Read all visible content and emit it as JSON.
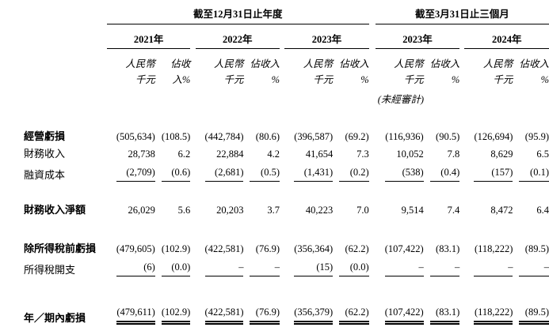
{
  "document": {
    "table": {
      "header": {
        "group1_title": "截至12月31日止年度",
        "group2_title": "截至3月31日止三個月",
        "years": [
          "2021年",
          "2022年",
          "2023年",
          "2023年",
          "2024年"
        ],
        "subheaders": [
          {
            "amount1": "人民幣",
            "amount2": "千元",
            "pct1": "佔收",
            "pct2": "入%"
          },
          {
            "amount1": "人民幣",
            "amount2": "千元",
            "pct1": "佔收入",
            "pct2": "%"
          },
          {
            "amount1": "人民幣",
            "amount2": "千元",
            "pct1": "佔收入",
            "pct2": "%"
          },
          {
            "amount1": "人民幣",
            "amount2": "千元",
            "pct1": "佔收入",
            "pct2": "%"
          },
          {
            "amount1": "人民幣",
            "amount2": "千元",
            "pct1": "佔收入",
            "pct2": "%"
          }
        ],
        "unaudited_note": "(未經審計)"
      },
      "rows": [
        {
          "label": "經營虧損",
          "values": [
            "(505,634)",
            "(108.5)",
            "(442,784)",
            "(80.6)",
            "(396,587)",
            "(69.2)",
            "(116,936)",
            "(90.5)",
            "(126,694)",
            "(95.9)"
          ]
        },
        {
          "label": "財務收入",
          "values": [
            "28,738",
            "6.2",
            "22,884",
            "4.2",
            "41,654",
            "7.3",
            "10,052",
            "7.8",
            "8,629",
            "6.5"
          ]
        },
        {
          "label": "融資成本",
          "values": [
            "(2,709)",
            "(0.6)",
            "(2,681)",
            "(0.5)",
            "(1,431)",
            "(0.2)",
            "(538)",
            "(0.4)",
            "(157)",
            "(0.1)"
          ]
        },
        {
          "label": "財務收入淨額",
          "values": [
            "26,029",
            "5.6",
            "20,203",
            "3.7",
            "40,223",
            "7.0",
            "9,514",
            "7.4",
            "8,472",
            "6.4"
          ]
        },
        {
          "label": "除所得稅前虧損",
          "values": [
            "(479,605)",
            "(102.9)",
            "(422,581)",
            "(76.9)",
            "(356,364)",
            "(62.2)",
            "(107,422)",
            "(83.1)",
            "(118,222)",
            "(89.5)"
          ]
        },
        {
          "label": "所得稅開支",
          "values": [
            "(6)",
            "(0.0)",
            "–",
            "–",
            "(15)",
            "(0.0)",
            "–",
            "–",
            "–",
            "–"
          ]
        },
        {
          "label": "年／期內虧損",
          "values": [
            "(479,611)",
            "(102.9)",
            "(422,581)",
            "(76.9)",
            "(356,379)",
            "(62.2)",
            "(107,422)",
            "(83.1)",
            "(118,222)",
            "(89.5)"
          ]
        }
      ]
    }
  }
}
